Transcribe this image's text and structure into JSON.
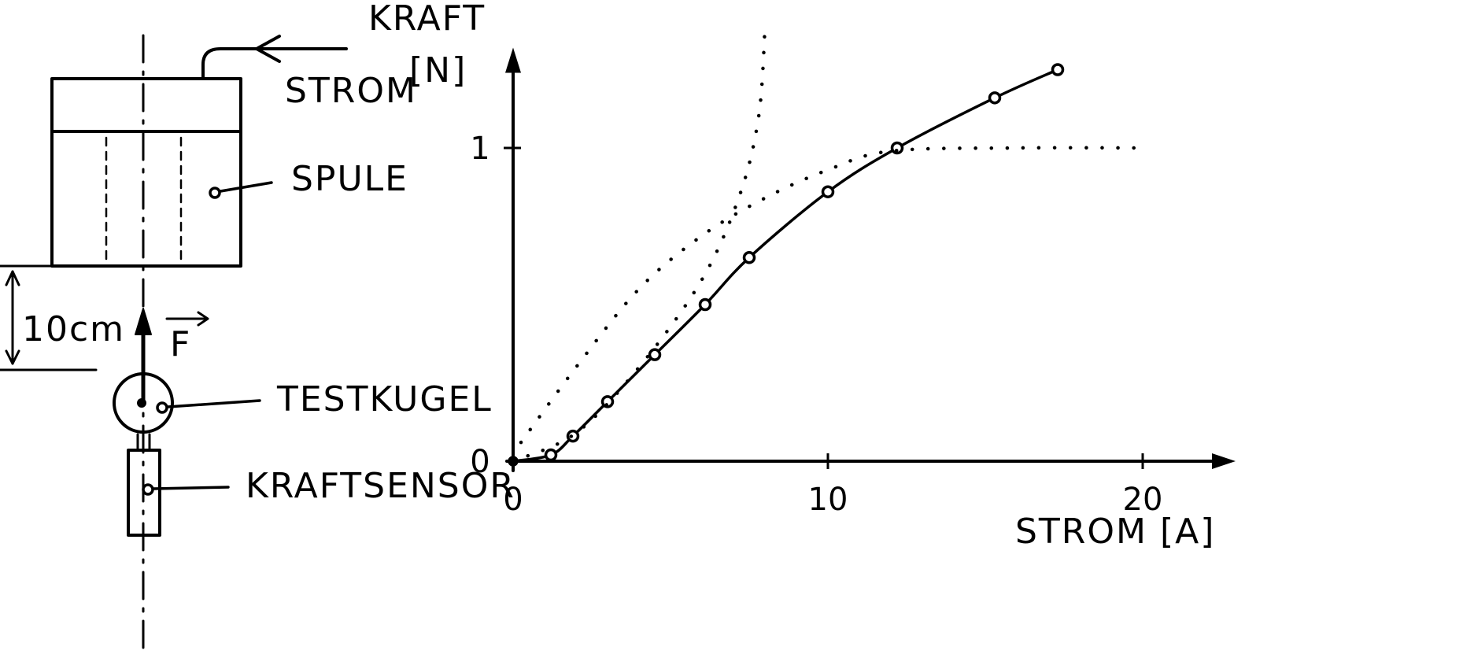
{
  "labels": {
    "stroh_arrow": "STROM",
    "spule": "SPULE",
    "distance": "10cm",
    "force_vector": "F",
    "testkugel": "TESTKUGEL",
    "kraftsensor": "KRAFTSENSOR"
  },
  "chart_data": {
    "type": "line",
    "ylabel_line1": "KRAFT",
    "ylabel_line2": "[N]",
    "xlabel": "STROM [A]",
    "xlim": [
      0,
      22.5
    ],
    "ylim": [
      0,
      1.26
    ],
    "x_ticks": [
      0,
      10,
      20
    ],
    "y_ticks": [
      0,
      1
    ],
    "grid": false,
    "series": [
      {
        "style": "solid-with-circle-markers",
        "x": [
          0,
          1.2,
          1.9,
          3.0,
          4.5,
          6.1,
          7.5,
          10.0,
          12.2,
          15.3,
          17.3
        ],
        "y": [
          0.0,
          0.02,
          0.08,
          0.19,
          0.34,
          0.5,
          0.65,
          0.86,
          1.0,
          1.16,
          1.25
        ]
      },
      {
        "style": "dotted",
        "x": [
          0,
          2.0,
          4.0,
          6.0,
          7.2,
          7.8,
          8.0
        ],
        "y": [
          0.0,
          0.09,
          0.3,
          0.58,
          0.85,
          1.1,
          1.38
        ]
      },
      {
        "style": "dotted",
        "x": [
          0.25,
          2.0,
          4.0,
          6.0,
          8.0,
          10.0,
          12.0,
          16.0,
          20.2
        ],
        "y": [
          0.06,
          0.3,
          0.55,
          0.72,
          0.84,
          0.93,
          0.99,
          1.0,
          1.0
        ]
      }
    ]
  }
}
